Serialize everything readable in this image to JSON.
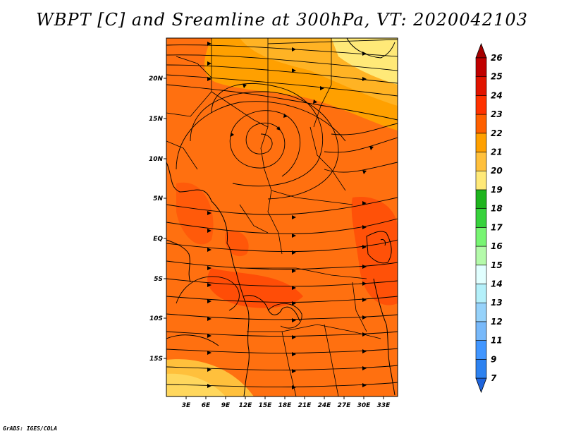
{
  "title": "WBPT [C] and Sreamline at 300hPa, VT: 2020042103",
  "credit": "GrADS: IGES/COLA",
  "lat_labels": [
    "20N",
    "15N",
    "10N",
    "5N",
    "EQ",
    "5S",
    "10S",
    "15S"
  ],
  "lon_labels": [
    "3E",
    "6E",
    "9E",
    "12E",
    "15E",
    "18E",
    "21E",
    "24E",
    "27E",
    "30E",
    "33E"
  ],
  "colorbar": {
    "labels": [
      "7",
      "9",
      "11",
      "12",
      "13",
      "14",
      "15",
      "16",
      "17",
      "18",
      "19",
      "20",
      "21",
      "22",
      "23",
      "24",
      "25",
      "26"
    ],
    "colors": [
      "#1e64dc",
      "#2d82f0",
      "#4196ff",
      "#78b9fa",
      "#96d2fa",
      "#b4f0fa",
      "#e1ffff",
      "#b4faaa",
      "#78f573",
      "#37d23c",
      "#1eb41e",
      "#ffe978",
      "#ffc03c",
      "#ffa000",
      "#ff6000",
      "#ff3200",
      "#e11400",
      "#c00000",
      "#a50000"
    ]
  },
  "chart_data": {
    "type": "heatmap",
    "title": "WBPT [C] and Sreamline at 300hPa, VT: 2020042103",
    "variable": "Wet-bulb potential temperature (C) with streamlines at 300hPa",
    "valid_time": "2020042103",
    "lon_range": [
      0,
      35
    ],
    "lat_range": [
      -20,
      24
    ],
    "dominant_range_C": [
      22,
      24
    ],
    "color_scale": [
      7,
      26
    ]
  }
}
